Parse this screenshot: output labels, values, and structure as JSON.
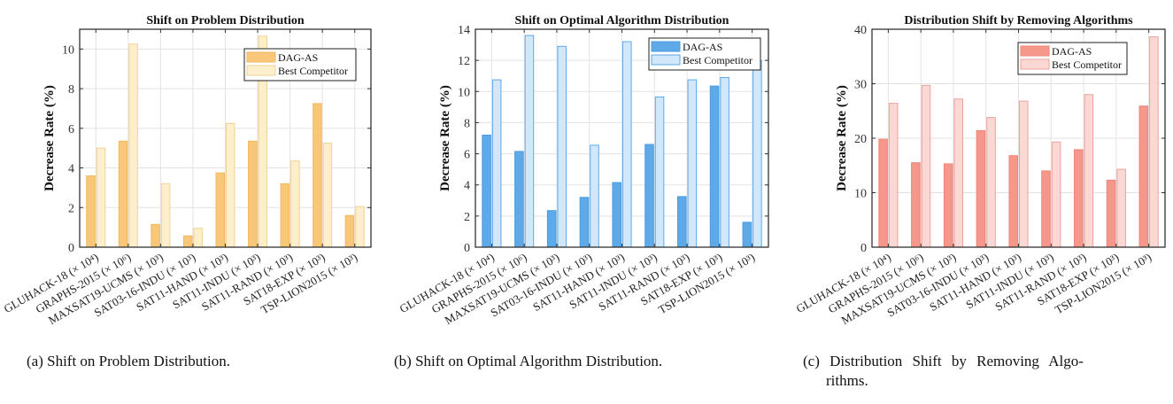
{
  "chart_data": [
    {
      "type": "bar",
      "title": "Shift on Problem Distribution",
      "ylabel": "Decrease Rate (%)",
      "ylim": [
        0,
        11
      ],
      "yticks": [
        0,
        2,
        4,
        6,
        8,
        10
      ],
      "grid": true,
      "legend": "top-right",
      "categories": [
        "GLUHACK-18 (× 10⁴)",
        "GRAPHS-2015 (× 10⁶)",
        "MAXSAT19-UCMS (× 10³)",
        "SAT03-16-INDU (× 10³)",
        "SAT11-HAND (× 10³)",
        "SAT11-INDU (× 10³)",
        "SAT11-RAND (× 10³)",
        "SAT18-EXP (× 10³)",
        "TSP-LION2015 (× 10³)"
      ],
      "series": [
        {
          "name": "DAG-AS",
          "color": "#f8c77a",
          "stroke": "#f3b85e",
          "values": [
            3.6,
            5.35,
            1.15,
            0.57,
            3.75,
            5.35,
            3.2,
            7.25,
            1.6
          ]
        },
        {
          "name": "Best Competitor",
          "color": "#fdefcc",
          "stroke": "#f1d295",
          "values": [
            5.0,
            10.25,
            3.2,
            0.95,
            6.25,
            10.65,
            4.35,
            5.25,
            2.05
          ]
        }
      ],
      "caption": "(a) Shift on Problem Distribution."
    },
    {
      "type": "bar",
      "title": "Shift on Optimal Algorithm Distribution",
      "ylabel": "Decrease Rate (%)",
      "ylim": [
        0,
        14
      ],
      "yticks": [
        0,
        2,
        4,
        6,
        8,
        10,
        12,
        14
      ],
      "grid": true,
      "legend": "top-right",
      "categories": [
        "GLUHACK-18 (× 10⁴)",
        "GRAPHS-2015 (× 10⁶)",
        "MAXSAT19-UCMS (× 10³)",
        "SAT03-16-INDU (× 10³)",
        "SAT11-HAND (× 10³)",
        "SAT11-INDU (× 10³)",
        "SAT11-RAND (× 10³)",
        "SAT18-EXP (× 10³)",
        "TSP-LION2015 (× 10³)"
      ],
      "series": [
        {
          "name": "DAG-AS",
          "color": "#5eaae8",
          "stroke": "#4a9be0",
          "values": [
            7.2,
            6.15,
            2.35,
            3.2,
            4.15,
            6.6,
            3.25,
            10.35,
            1.6
          ]
        },
        {
          "name": "Best Competitor",
          "color": "#d2e7f9",
          "stroke": "#5eaae8",
          "values": [
            10.75,
            13.6,
            12.9,
            6.55,
            13.2,
            9.65,
            10.75,
            10.9,
            12.0
          ]
        }
      ],
      "caption": "(b) Shift on Optimal Algorithm Distribution."
    },
    {
      "type": "bar",
      "title": "Distribution Shift by Removing Algorithms",
      "ylabel": "Decrease Rate (%)",
      "ylim": [
        0,
        40
      ],
      "yticks": [
        0,
        10,
        20,
        30,
        40
      ],
      "grid": true,
      "legend": "top-right",
      "categories": [
        "GLUHACK-18 (× 10⁴)",
        "GRAPHS-2015 (× 10⁶)",
        "MAXSAT19-UCMS (× 10³)",
        "SAT03-16-INDU (× 10³)",
        "SAT11-HAND (× 10³)",
        "SAT11-INDU (× 10³)",
        "SAT11-RAND (× 10³)",
        "SAT18-EXP (× 10³)",
        "TSP-LION2015 (× 10³)"
      ],
      "series": [
        {
          "name": "DAG-AS",
          "color": "#f5978b",
          "stroke": "#ee8578",
          "values": [
            19.8,
            15.5,
            15.3,
            21.4,
            16.8,
            14.0,
            17.9,
            12.3,
            25.9
          ]
        },
        {
          "name": "Best Competitor",
          "color": "#fcd8d5",
          "stroke": "#ea a39c",
          "values": [
            26.4,
            29.7,
            27.2,
            23.8,
            26.8,
            19.3,
            28.0,
            14.3,
            38.6
          ]
        }
      ],
      "caption": "(c) Distribution Shift by Removing Algo-",
      "caption_line2": "rithms."
    }
  ]
}
